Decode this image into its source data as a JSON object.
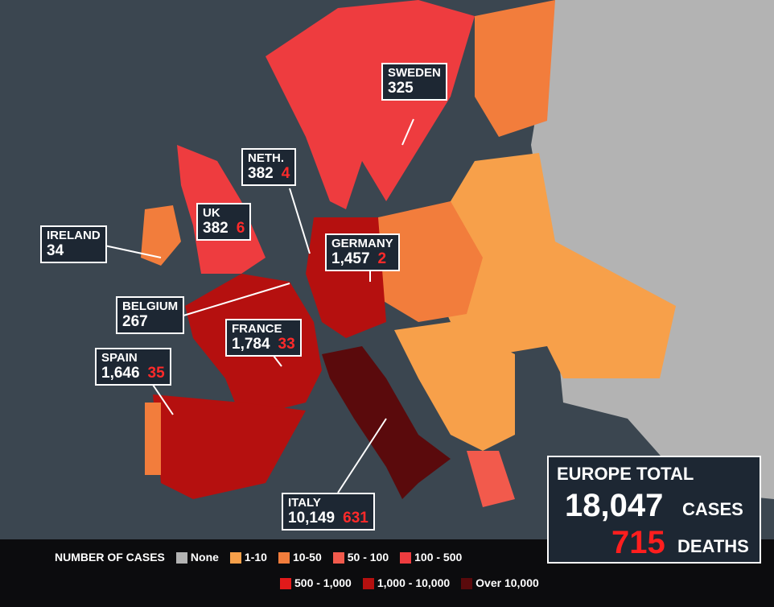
{
  "callouts": [
    {
      "country": "SWEDEN",
      "cases": "325"
    },
    {
      "country": "NETH.",
      "cases": "382",
      "deaths": "4"
    },
    {
      "country": "UK",
      "cases": "382",
      "deaths": "6"
    },
    {
      "country": "IRELAND",
      "cases": "34"
    },
    {
      "country": "GERMANY",
      "cases": "1,457",
      "deaths": "2"
    },
    {
      "country": "BELGIUM",
      "cases": "267"
    },
    {
      "country": "FRANCE",
      "cases": "1,784",
      "deaths": "33"
    },
    {
      "country": "SPAIN",
      "cases": "1,646",
      "deaths": "35"
    },
    {
      "country": "ITALY",
      "cases": "10,149",
      "deaths": "631"
    }
  ],
  "total": {
    "title": "EUROPE TOTAL",
    "cases": "18,047",
    "cases_label": "CASES",
    "deaths": "715",
    "deaths_label": "DEATHS"
  },
  "legend": {
    "title": "NUMBER OF CASES",
    "items": [
      {
        "label": "None",
        "color": "#b3b3b3"
      },
      {
        "label": "1-10",
        "color": "#f7a04a"
      },
      {
        "label": "10-50",
        "color": "#f27d3c"
      },
      {
        "label": "50 - 100",
        "color": "#f25a4c"
      },
      {
        "label": "100 - 500",
        "color": "#ee3c3f"
      },
      {
        "label": "500 - 1,000",
        "color": "#e21a1a"
      },
      {
        "label": "1,000 - 10,000",
        "color": "#b5100f"
      },
      {
        "label": "Over 10,000",
        "color": "#5a0a0c"
      }
    ]
  }
}
